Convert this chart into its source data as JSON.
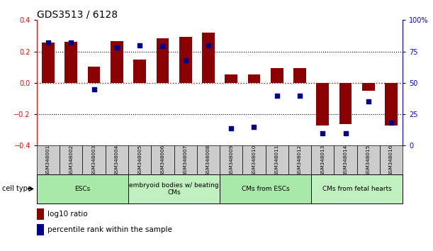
{
  "title": "GDS3513 / 6128",
  "samples": [
    "GSM348001",
    "GSM348002",
    "GSM348003",
    "GSM348004",
    "GSM348005",
    "GSM348006",
    "GSM348007",
    "GSM348008",
    "GSM348009",
    "GSM348010",
    "GSM348011",
    "GSM348012",
    "GSM348013",
    "GSM348014",
    "GSM348015",
    "GSM348016"
  ],
  "log10_ratio": [
    0.255,
    0.26,
    0.105,
    0.265,
    0.15,
    0.285,
    0.295,
    0.32,
    0.055,
    0.055,
    0.095,
    0.095,
    -0.27,
    -0.265,
    -0.05,
    -0.27
  ],
  "percentile_rank": [
    82,
    82,
    45,
    78,
    80,
    79,
    68,
    80,
    14,
    15,
    40,
    40,
    10,
    10,
    35,
    18
  ],
  "bar_color": "#8B0000",
  "dot_color": "#00008B",
  "ylim_left": [
    -0.4,
    0.4
  ],
  "ylim_right": [
    0,
    100
  ],
  "yticks_left": [
    -0.4,
    -0.2,
    0,
    0.2,
    0.4
  ],
  "yticks_right": [
    0,
    25,
    50,
    75,
    100
  ],
  "cell_type_groups": [
    {
      "label": "ESCs",
      "start": 0,
      "end": 3,
      "color": "#a8e8a8"
    },
    {
      "label": "embryoid bodies w/ beating\nCMs",
      "start": 4,
      "end": 7,
      "color": "#c0f0c0"
    },
    {
      "label": "CMs from ESCs",
      "start": 8,
      "end": 11,
      "color": "#a8e8a8"
    },
    {
      "label": "CMs from fetal hearts",
      "start": 12,
      "end": 15,
      "color": "#c0f0c0"
    }
  ],
  "legend_bar_label": "log10 ratio",
  "legend_dot_label": "percentile rank within the sample",
  "bar_width": 0.55,
  "hline_color_zero": "#CC0000",
  "hline_color_dotted": "black",
  "background_color": "white",
  "title_fontsize": 10,
  "tick_fontsize": 7,
  "cell_type_label": "cell type"
}
